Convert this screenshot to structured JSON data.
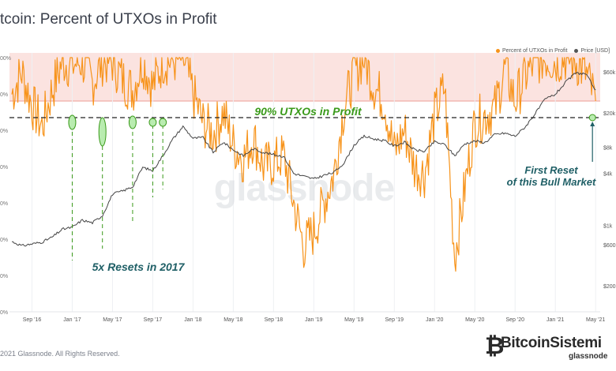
{
  "title": "tcoin: Percent of UTXOs in Profit",
  "legend": [
    {
      "label": "Percent of UTXOs in Profit",
      "color": "#f7931a"
    },
    {
      "label": "Price [USD]",
      "color": "#555555"
    }
  ],
  "footer": "2021 Glassnode. All Rights Reserved.",
  "watermark": "glassnode",
  "brand": {
    "name": "BitcoinSistemi",
    "sub": "glassnode"
  },
  "chart_data": {
    "type": "line",
    "x_ticks": [
      "Sep '16",
      "Jan '17",
      "May '17",
      "Sep '17",
      "Jan '18",
      "May '18",
      "Sep '18",
      "Jan '19",
      "May '19",
      "Sep '19",
      "Jan '20",
      "May '20",
      "Sep '20",
      "Jan '21",
      "May '21"
    ],
    "left_axis": {
      "ticks": [
        "00%",
        "0%",
        "0%",
        "0%",
        "0%",
        "0%",
        "0%",
        "0%"
      ],
      "ylim": [
        30,
        100
      ]
    },
    "right_axis": {
      "ticks": [
        "$60k",
        "$20k",
        "$8k",
        "$4k",
        "$1k",
        "$600",
        "$200"
      ],
      "scale": "log"
    },
    "annotations": {
      "hline_label": "90% UTXOs in Profit",
      "resets_label": "5x Resets in 2017",
      "first_reset_line1": "First Reset",
      "first_reset_line2": "of this Bull Market"
    },
    "series": [
      {
        "name": "Percent of UTXOs in Profit",
        "color": "#f7931a",
        "points": [
          [
            "Jul '16",
            90
          ],
          [
            "Aug '16",
            96
          ],
          [
            "Sep '16",
            87
          ],
          [
            "Oct '16",
            81
          ],
          [
            "Nov '16",
            91
          ],
          [
            "Dec '16",
            99
          ],
          [
            "Jan '17",
            98
          ],
          [
            "Feb '17",
            99
          ],
          [
            "Mar '17",
            93
          ],
          [
            "Apr '17",
            99
          ],
          [
            "May '17",
            99
          ],
          [
            "Jun '17",
            94
          ],
          [
            "Jul '17",
            91
          ],
          [
            "Aug '17",
            99
          ],
          [
            "Sep '17",
            92
          ],
          [
            "Oct '17",
            99
          ],
          [
            "Nov '17",
            99
          ],
          [
            "Dec '17",
            100
          ],
          [
            "Jan '18",
            90
          ],
          [
            "Feb '18",
            82
          ],
          [
            "Mar '18",
            79
          ],
          [
            "Apr '18",
            85
          ],
          [
            "May '18",
            76
          ],
          [
            "Jun '18",
            72
          ],
          [
            "Jul '18",
            78
          ],
          [
            "Aug '18",
            70
          ],
          [
            "Sep '18",
            71
          ],
          [
            "Oct '18",
            73
          ],
          [
            "Nov '18",
            60
          ],
          [
            "Dec '18",
            48
          ],
          [
            "Jan '19",
            52
          ],
          [
            "Feb '19",
            60
          ],
          [
            "Mar '19",
            68
          ],
          [
            "Apr '19",
            86
          ],
          [
            "May '19",
            96
          ],
          [
            "Jun '19",
            100
          ],
          [
            "Jul '19",
            92
          ],
          [
            "Aug '19",
            88
          ],
          [
            "Sep '19",
            74
          ],
          [
            "Oct '19",
            80
          ],
          [
            "Nov '19",
            70
          ],
          [
            "Dec '19",
            68
          ],
          [
            "Jan '20",
            84
          ],
          [
            "Feb '20",
            92
          ],
          [
            "Mar '20",
            45
          ],
          [
            "Apr '20",
            64
          ],
          [
            "May '20",
            82
          ],
          [
            "Jun '20",
            84
          ],
          [
            "Jul '20",
            86
          ],
          [
            "Aug '20",
            97
          ],
          [
            "Sep '20",
            88
          ],
          [
            "Oct '20",
            95
          ],
          [
            "Nov '20",
            99
          ],
          [
            "Dec '20",
            100
          ],
          [
            "Jan '21",
            99
          ],
          [
            "Feb '21",
            100
          ],
          [
            "Mar '21",
            99
          ],
          [
            "Apr '21",
            96
          ],
          [
            "May '21",
            88
          ]
        ]
      },
      {
        "name": "Price [USD]",
        "color": "#444444",
        "points": [
          [
            "Jul '16",
            650
          ],
          [
            "Aug '16",
            580
          ],
          [
            "Sep '16",
            610
          ],
          [
            "Oct '16",
            640
          ],
          [
            "Nov '16",
            730
          ],
          [
            "Dec '16",
            900
          ],
          [
            "Jan '17",
            950
          ],
          [
            "Feb '17",
            1150
          ],
          [
            "Mar '17",
            1070
          ],
          [
            "Apr '17",
            1300
          ],
          [
            "May '17",
            2300
          ],
          [
            "Jun '17",
            2500
          ],
          [
            "Jul '17",
            2800
          ],
          [
            "Aug '17",
            4700
          ],
          [
            "Sep '17",
            4300
          ],
          [
            "Oct '17",
            6400
          ],
          [
            "Nov '17",
            10000
          ],
          [
            "Dec '17",
            14000
          ],
          [
            "Jan '18",
            10200
          ],
          [
            "Feb '18",
            10400
          ],
          [
            "Mar '18",
            7000
          ],
          [
            "Apr '18",
            9200
          ],
          [
            "May '18",
            7500
          ],
          [
            "Jun '18",
            6400
          ],
          [
            "Jul '18",
            7700
          ],
          [
            "Aug '18",
            7000
          ],
          [
            "Sep '18",
            6600
          ],
          [
            "Oct '18",
            6300
          ],
          [
            "Nov '18",
            4000
          ],
          [
            "Dec '18",
            3700
          ],
          [
            "Jan '19",
            3450
          ],
          [
            "Feb '19",
            3800
          ],
          [
            "Mar '19",
            4100
          ],
          [
            "Apr '19",
            5300
          ],
          [
            "May '19",
            8500
          ],
          [
            "Jun '19",
            10800
          ],
          [
            "Jul '19",
            10000
          ],
          [
            "Aug '19",
            9600
          ],
          [
            "Sep '19",
            8300
          ],
          [
            "Oct '19",
            9200
          ],
          [
            "Nov '19",
            7500
          ],
          [
            "Dec '19",
            7200
          ],
          [
            "Jan '20",
            9300
          ],
          [
            "Feb '20",
            8600
          ],
          [
            "Mar '20",
            6400
          ],
          [
            "Apr '20",
            8800
          ],
          [
            "May '20",
            9500
          ],
          [
            "Jun '20",
            9100
          ],
          [
            "Jul '20",
            11300
          ],
          [
            "Aug '20",
            11700
          ],
          [
            "Sep '20",
            10800
          ],
          [
            "Oct '20",
            13800
          ],
          [
            "Nov '20",
            19700
          ],
          [
            "Dec '20",
            29000
          ],
          [
            "Jan '21",
            33000
          ],
          [
            "Feb '21",
            45000
          ],
          [
            "Mar '21",
            58000
          ],
          [
            "Apr '21",
            57000
          ],
          [
            "May '21",
            37000
          ]
        ]
      }
    ],
    "reset_markers": [
      "Jan '17",
      "Apr '17",
      "Jul '17",
      "Sep '17",
      "Oct '17"
    ],
    "first_reset_marker": "May '21"
  }
}
